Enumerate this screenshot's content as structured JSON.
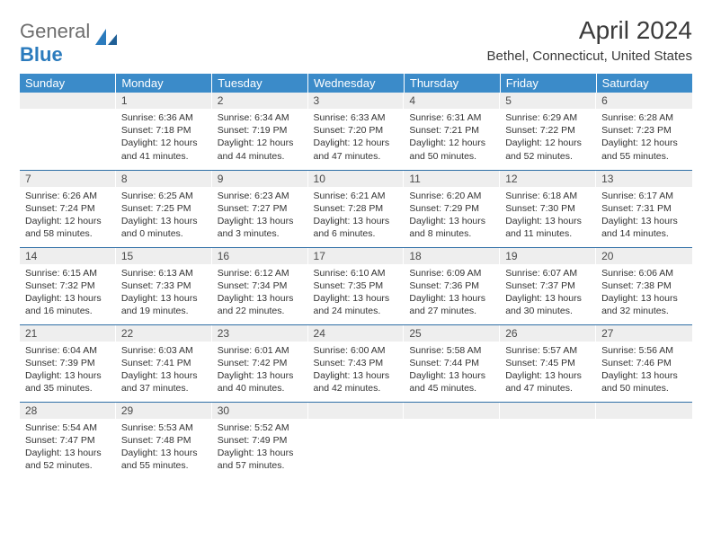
{
  "logo": {
    "text_gray": "General",
    "text_blue": "Blue"
  },
  "title": "April 2024",
  "location": "Bethel, Connecticut, United States",
  "colors": {
    "header_bg": "#3b8bc9",
    "header_fg": "#ffffff",
    "daynum_bg": "#eeeeee",
    "row_divider": "#2f6fa6",
    "text": "#333333",
    "logo_gray": "#6e6e6e",
    "logo_blue": "#2b7bbd"
  },
  "fonts": {
    "month_title_pt": 28,
    "location_pt": 15,
    "weekday_pt": 13,
    "daynum_pt": 12,
    "body_pt": 10.5
  },
  "weekdays": [
    "Sunday",
    "Monday",
    "Tuesday",
    "Wednesday",
    "Thursday",
    "Friday",
    "Saturday"
  ],
  "weeks": [
    [
      {
        "n": "",
        "sr": "",
        "ss": "",
        "dl1": "",
        "dl2": ""
      },
      {
        "n": "1",
        "sr": "Sunrise: 6:36 AM",
        "ss": "Sunset: 7:18 PM",
        "dl1": "Daylight: 12 hours",
        "dl2": "and 41 minutes."
      },
      {
        "n": "2",
        "sr": "Sunrise: 6:34 AM",
        "ss": "Sunset: 7:19 PM",
        "dl1": "Daylight: 12 hours",
        "dl2": "and 44 minutes."
      },
      {
        "n": "3",
        "sr": "Sunrise: 6:33 AM",
        "ss": "Sunset: 7:20 PM",
        "dl1": "Daylight: 12 hours",
        "dl2": "and 47 minutes."
      },
      {
        "n": "4",
        "sr": "Sunrise: 6:31 AM",
        "ss": "Sunset: 7:21 PM",
        "dl1": "Daylight: 12 hours",
        "dl2": "and 50 minutes."
      },
      {
        "n": "5",
        "sr": "Sunrise: 6:29 AM",
        "ss": "Sunset: 7:22 PM",
        "dl1": "Daylight: 12 hours",
        "dl2": "and 52 minutes."
      },
      {
        "n": "6",
        "sr": "Sunrise: 6:28 AM",
        "ss": "Sunset: 7:23 PM",
        "dl1": "Daylight: 12 hours",
        "dl2": "and 55 minutes."
      }
    ],
    [
      {
        "n": "7",
        "sr": "Sunrise: 6:26 AM",
        "ss": "Sunset: 7:24 PM",
        "dl1": "Daylight: 12 hours",
        "dl2": "and 58 minutes."
      },
      {
        "n": "8",
        "sr": "Sunrise: 6:25 AM",
        "ss": "Sunset: 7:25 PM",
        "dl1": "Daylight: 13 hours",
        "dl2": "and 0 minutes."
      },
      {
        "n": "9",
        "sr": "Sunrise: 6:23 AM",
        "ss": "Sunset: 7:27 PM",
        "dl1": "Daylight: 13 hours",
        "dl2": "and 3 minutes."
      },
      {
        "n": "10",
        "sr": "Sunrise: 6:21 AM",
        "ss": "Sunset: 7:28 PM",
        "dl1": "Daylight: 13 hours",
        "dl2": "and 6 minutes."
      },
      {
        "n": "11",
        "sr": "Sunrise: 6:20 AM",
        "ss": "Sunset: 7:29 PM",
        "dl1": "Daylight: 13 hours",
        "dl2": "and 8 minutes."
      },
      {
        "n": "12",
        "sr": "Sunrise: 6:18 AM",
        "ss": "Sunset: 7:30 PM",
        "dl1": "Daylight: 13 hours",
        "dl2": "and 11 minutes."
      },
      {
        "n": "13",
        "sr": "Sunrise: 6:17 AM",
        "ss": "Sunset: 7:31 PM",
        "dl1": "Daylight: 13 hours",
        "dl2": "and 14 minutes."
      }
    ],
    [
      {
        "n": "14",
        "sr": "Sunrise: 6:15 AM",
        "ss": "Sunset: 7:32 PM",
        "dl1": "Daylight: 13 hours",
        "dl2": "and 16 minutes."
      },
      {
        "n": "15",
        "sr": "Sunrise: 6:13 AM",
        "ss": "Sunset: 7:33 PM",
        "dl1": "Daylight: 13 hours",
        "dl2": "and 19 minutes."
      },
      {
        "n": "16",
        "sr": "Sunrise: 6:12 AM",
        "ss": "Sunset: 7:34 PM",
        "dl1": "Daylight: 13 hours",
        "dl2": "and 22 minutes."
      },
      {
        "n": "17",
        "sr": "Sunrise: 6:10 AM",
        "ss": "Sunset: 7:35 PM",
        "dl1": "Daylight: 13 hours",
        "dl2": "and 24 minutes."
      },
      {
        "n": "18",
        "sr": "Sunrise: 6:09 AM",
        "ss": "Sunset: 7:36 PM",
        "dl1": "Daylight: 13 hours",
        "dl2": "and 27 minutes."
      },
      {
        "n": "19",
        "sr": "Sunrise: 6:07 AM",
        "ss": "Sunset: 7:37 PM",
        "dl1": "Daylight: 13 hours",
        "dl2": "and 30 minutes."
      },
      {
        "n": "20",
        "sr": "Sunrise: 6:06 AM",
        "ss": "Sunset: 7:38 PM",
        "dl1": "Daylight: 13 hours",
        "dl2": "and 32 minutes."
      }
    ],
    [
      {
        "n": "21",
        "sr": "Sunrise: 6:04 AM",
        "ss": "Sunset: 7:39 PM",
        "dl1": "Daylight: 13 hours",
        "dl2": "and 35 minutes."
      },
      {
        "n": "22",
        "sr": "Sunrise: 6:03 AM",
        "ss": "Sunset: 7:41 PM",
        "dl1": "Daylight: 13 hours",
        "dl2": "and 37 minutes."
      },
      {
        "n": "23",
        "sr": "Sunrise: 6:01 AM",
        "ss": "Sunset: 7:42 PM",
        "dl1": "Daylight: 13 hours",
        "dl2": "and 40 minutes."
      },
      {
        "n": "24",
        "sr": "Sunrise: 6:00 AM",
        "ss": "Sunset: 7:43 PM",
        "dl1": "Daylight: 13 hours",
        "dl2": "and 42 minutes."
      },
      {
        "n": "25",
        "sr": "Sunrise: 5:58 AM",
        "ss": "Sunset: 7:44 PM",
        "dl1": "Daylight: 13 hours",
        "dl2": "and 45 minutes."
      },
      {
        "n": "26",
        "sr": "Sunrise: 5:57 AM",
        "ss": "Sunset: 7:45 PM",
        "dl1": "Daylight: 13 hours",
        "dl2": "and 47 minutes."
      },
      {
        "n": "27",
        "sr": "Sunrise: 5:56 AM",
        "ss": "Sunset: 7:46 PM",
        "dl1": "Daylight: 13 hours",
        "dl2": "and 50 minutes."
      }
    ],
    [
      {
        "n": "28",
        "sr": "Sunrise: 5:54 AM",
        "ss": "Sunset: 7:47 PM",
        "dl1": "Daylight: 13 hours",
        "dl2": "and 52 minutes."
      },
      {
        "n": "29",
        "sr": "Sunrise: 5:53 AM",
        "ss": "Sunset: 7:48 PM",
        "dl1": "Daylight: 13 hours",
        "dl2": "and 55 minutes."
      },
      {
        "n": "30",
        "sr": "Sunrise: 5:52 AM",
        "ss": "Sunset: 7:49 PM",
        "dl1": "Daylight: 13 hours",
        "dl2": "and 57 minutes."
      },
      {
        "n": "",
        "sr": "",
        "ss": "",
        "dl1": "",
        "dl2": ""
      },
      {
        "n": "",
        "sr": "",
        "ss": "",
        "dl1": "",
        "dl2": ""
      },
      {
        "n": "",
        "sr": "",
        "ss": "",
        "dl1": "",
        "dl2": ""
      },
      {
        "n": "",
        "sr": "",
        "ss": "",
        "dl1": "",
        "dl2": ""
      }
    ]
  ]
}
